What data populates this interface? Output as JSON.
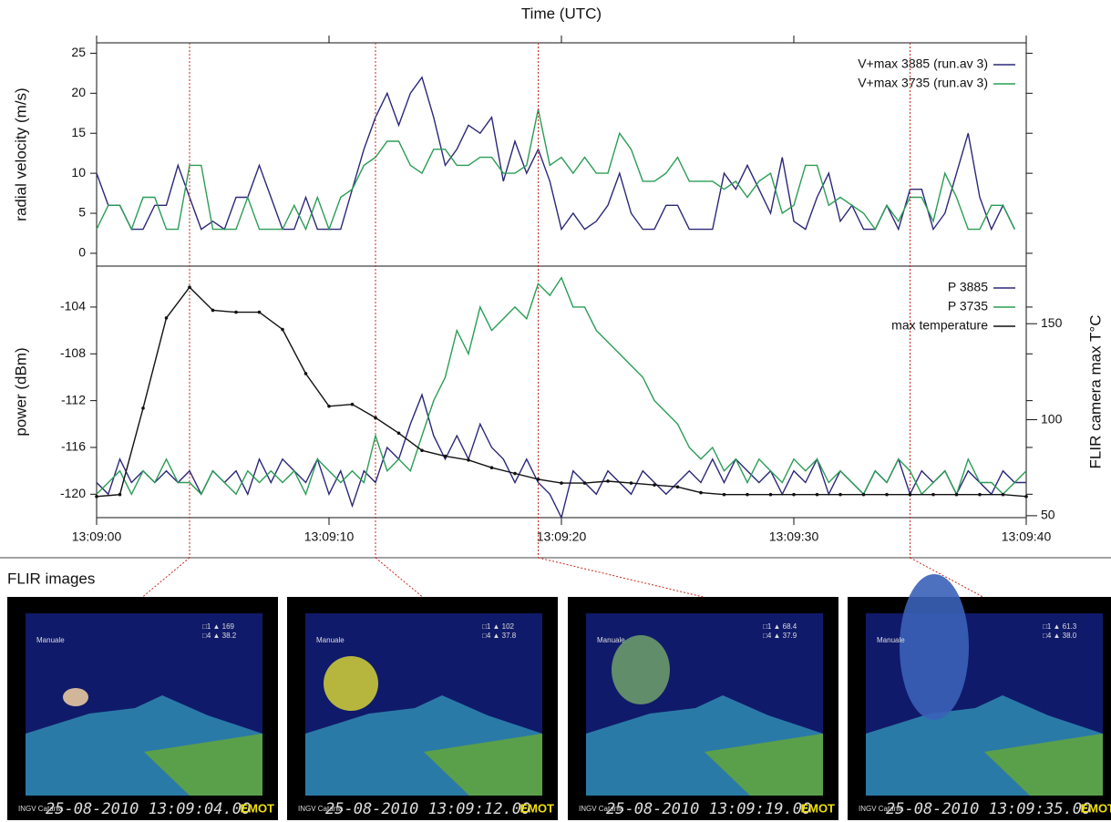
{
  "chart_data": [
    {
      "type": "line",
      "x_label": "Time (UTC)",
      "y_label": "radial velocity (m/s)",
      "xlim": [
        0,
        40
      ],
      "ylim": [
        -1.6,
        26.3
      ],
      "yticks": [
        0,
        5,
        10,
        15,
        20,
        25
      ],
      "legend": "upper right",
      "x": [
        0,
        0.5,
        1,
        1.5,
        2,
        2.5,
        3,
        3.5,
        4,
        4.5,
        5,
        5.5,
        6,
        6.5,
        7,
        7.5,
        8,
        8.5,
        9,
        9.5,
        10,
        10.5,
        11,
        11.5,
        12,
        12.5,
        13,
        13.5,
        14,
        14.5,
        15,
        15.5,
        16,
        16.5,
        17,
        17.5,
        18,
        18.5,
        19,
        19.5,
        20,
        20.5,
        21,
        21.5,
        22,
        22.5,
        23,
        23.5,
        24,
        24.5,
        25,
        25.5,
        26,
        26.5,
        27,
        27.5,
        28,
        28.5,
        29,
        29.5,
        30,
        30.5,
        31,
        31.5,
        32,
        32.5,
        33,
        33.5,
        34,
        34.5,
        35,
        35.5,
        36,
        36.5,
        37,
        37.5,
        38,
        38.5,
        39,
        39.5,
        40
      ],
      "series": [
        {
          "name": "V+max 3885 (run.av 3)",
          "color": "#2b2878",
          "values": [
            10,
            6,
            6,
            3,
            3,
            6,
            6,
            11,
            7,
            3,
            4,
            3,
            7,
            7,
            11,
            7,
            3,
            3,
            7,
            3,
            3,
            3,
            8,
            13,
            17,
            20,
            16,
            20,
            22,
            17,
            11,
            13,
            16,
            15,
            17,
            9,
            14,
            10,
            13,
            9,
            3,
            5,
            3,
            4,
            6,
            10,
            5,
            3,
            3,
            6,
            6,
            3,
            3,
            3,
            10,
            8,
            11,
            8,
            5,
            12,
            4,
            3,
            7,
            10,
            4,
            6,
            3,
            3,
            6,
            3,
            8,
            8,
            3,
            5,
            10,
            15,
            7,
            3,
            6,
            3,
            null
          ]
        },
        {
          "name": "V+max 3735 (run.av 3)",
          "color": "#2a9d55",
          "values": [
            3,
            6,
            6,
            3,
            7,
            7,
            3,
            3,
            11,
            11,
            3,
            3,
            3,
            7,
            3,
            3,
            3,
            6,
            3,
            7,
            3,
            7,
            8,
            11,
            12,
            14,
            14,
            11,
            10,
            13,
            13,
            11,
            11,
            12,
            12,
            10,
            10,
            11,
            18,
            11,
            12,
            10,
            12,
            10,
            10,
            15,
            13,
            9,
            9,
            10,
            12,
            9,
            9,
            9,
            8,
            9,
            7,
            9,
            10,
            5,
            6,
            11,
            11,
            6,
            7,
            6,
            5,
            3,
            6,
            4,
            7,
            7,
            4,
            10,
            7,
            3,
            3,
            6,
            6,
            3,
            null
          ]
        }
      ]
    },
    {
      "type": "line",
      "y_label": "power (dBm)",
      "y2_label": "FLIR camera max T°C",
      "xlim": [
        0,
        40
      ],
      "ylim": [
        -122,
        -100.5
      ],
      "yticks": [
        -120,
        -116,
        -112,
        -108,
        -104
      ],
      "y2lim": [
        49,
        180
      ],
      "y2ticks": [
        50,
        100,
        150
      ],
      "legend": "upper right",
      "xticks": [
        {
          "value": 0,
          "label": "13:09:00"
        },
        {
          "value": 10,
          "label": "13:09:10"
        },
        {
          "value": 20,
          "label": "13:09:20"
        },
        {
          "value": 30,
          "label": "13:09:30"
        },
        {
          "value": 40,
          "label": "13:09:40"
        }
      ],
      "vlines": [
        4,
        12,
        19,
        35
      ],
      "x": [
        0,
        0.5,
        1,
        1.5,
        2,
        2.5,
        3,
        3.5,
        4,
        4.5,
        5,
        5.5,
        6,
        6.5,
        7,
        7.5,
        8,
        8.5,
        9,
        9.5,
        10,
        10.5,
        11,
        11.5,
        12,
        12.5,
        13,
        13.5,
        14,
        14.5,
        15,
        15.5,
        16,
        16.5,
        17,
        17.5,
        18,
        18.5,
        19,
        19.5,
        20,
        20.5,
        21,
        21.5,
        22,
        22.5,
        23,
        23.5,
        24,
        24.5,
        25,
        25.5,
        26,
        26.5,
        27,
        27.5,
        28,
        28.5,
        29,
        29.5,
        30,
        30.5,
        31,
        31.5,
        32,
        32.5,
        33,
        33.5,
        34,
        34.5,
        35,
        35.5,
        36,
        36.5,
        37,
        37.5,
        38,
        38.5,
        39,
        39.5,
        40
      ],
      "series": [
        {
          "name": "P 3885",
          "color": "#2b2878",
          "values": [
            -119,
            -120,
            -117,
            -119,
            -118,
            -119,
            -118,
            -119,
            -118,
            -120,
            -118,
            -119,
            -118,
            -120,
            -117,
            -119,
            -117,
            -118,
            -119,
            -117,
            -120,
            -118,
            -121,
            -118,
            -119,
            -116,
            -117,
            -114,
            -111.5,
            -115,
            -117,
            -115,
            -117,
            -114,
            -116,
            -117,
            -119,
            -117,
            -119,
            -120,
            -122,
            -118,
            -119,
            -120,
            -118,
            -119,
            -120,
            -118,
            -119,
            -120,
            -119,
            -118,
            -119,
            -117,
            -119,
            -117,
            -118,
            -119,
            -118,
            -120,
            -118,
            -119,
            -117,
            -120,
            -118,
            -119,
            -120,
            -118,
            -119,
            -117,
            -120,
            -118,
            -119,
            -118,
            -120,
            -118,
            -119,
            -120,
            -118,
            -119,
            -119
          ]
        },
        {
          "name": "P 3735",
          "color": "#2a9d55",
          "values": [
            -120,
            -119,
            -118,
            -120,
            -118,
            -119,
            -117,
            -119,
            -119,
            -120,
            -118,
            -119,
            -120,
            -118,
            -119,
            -118,
            -119,
            -118,
            -120,
            -117,
            -118,
            -119,
            -118,
            -119,
            -115,
            -118,
            -117,
            -118,
            -115,
            -112,
            -110,
            -106,
            -108,
            -104,
            -106,
            -105,
            -104,
            -105,
            -102,
            -103,
            -101.5,
            -104,
            -104,
            -106,
            -107,
            -108,
            -109,
            -110,
            -112,
            -113,
            -114,
            -116,
            -117,
            -116,
            -118,
            -117,
            -119,
            -117,
            -118,
            -119,
            -117,
            -118,
            -117,
            -119,
            -118,
            -119,
            -120,
            -118,
            -119,
            -117,
            -118,
            -120,
            -119,
            -118,
            -120,
            -117,
            -119,
            -119,
            -120,
            -119,
            -118
          ]
        },
        {
          "name": "max temperature",
          "color": "#111111",
          "axis": "y2",
          "marker": true,
          "x": [
            0,
            1,
            2,
            3,
            4,
            5,
            6,
            7,
            8,
            9,
            10,
            11,
            12,
            13,
            14,
            15,
            16,
            17,
            18,
            19,
            20,
            21,
            22,
            23,
            24,
            25,
            26,
            27,
            28,
            29,
            30,
            31,
            32,
            33,
            34,
            35,
            36,
            37,
            38,
            39,
            40
          ],
          "values": [
            60,
            61,
            106,
            153,
            169,
            157,
            156,
            156,
            147,
            124,
            107,
            108,
            101,
            93,
            84,
            81,
            79,
            75,
            72,
            69,
            67,
            67,
            68,
            67,
            66,
            65,
            62,
            61,
            61,
            61,
            61,
            61,
            61,
            61,
            61,
            61,
            61,
            61,
            61,
            61,
            60
          ]
        }
      ]
    }
  ],
  "section_title": "FLIR images",
  "flir_images": [
    {
      "mode": "Manuale",
      "readings": [
        "□1 ▲ 169",
        "□4 ▲ 38.2"
      ],
      "logo": "INGV Catania",
      "timestamp": "25-08-2010  13:09:04.00",
      "brand": "EMOT"
    },
    {
      "mode": "Manuale",
      "readings": [
        "□1 ▲ 102",
        "□4 ▲ 37.8"
      ],
      "logo": "INGV Catania",
      "timestamp": "25-08-2010  13:09:12.00",
      "brand": "EMOT"
    },
    {
      "mode": "Manuale",
      "readings": [
        "□1 ▲ 68.4",
        "□4 ▲ 37.9"
      ],
      "logo": "INGV Catania",
      "timestamp": "25-08-2010  13:09:19.00",
      "brand": "EMOT"
    },
    {
      "mode": "Manuale",
      "readings": [
        "□1 ▲ 61.3",
        "□4 ▲ 38.0"
      ],
      "logo": "INGV Catania",
      "timestamp": "25-08-2010  13:09:35.00",
      "brand": "EMOT"
    }
  ]
}
